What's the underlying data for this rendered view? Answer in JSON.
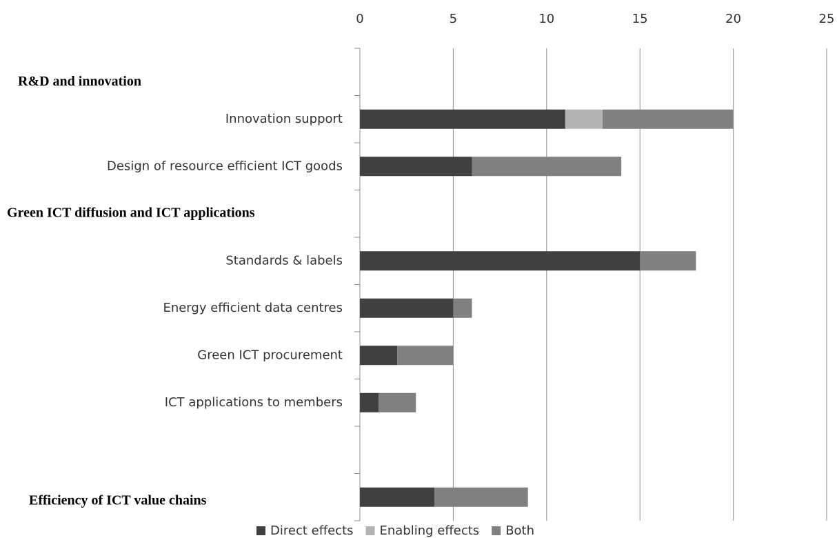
{
  "chart_data": {
    "type": "stacked_barh",
    "categories": [
      "R&D and innovation",
      "Innovation support",
      "Design of resource efficient ICT goods",
      "Green ICT diffusion and ICT applications",
      "Standards & labels",
      "Energy efficient data centres",
      "Green ICT procurement",
      "ICT applications to members",
      null,
      "Efficiency of ICT value chains"
    ],
    "bold": [
      true,
      false,
      false,
      true,
      false,
      false,
      false,
      false,
      false,
      true
    ],
    "series": [
      {
        "name": "Direct effects",
        "color": "#404040",
        "values": [
          null,
          11,
          6,
          null,
          15,
          5,
          2,
          1,
          null,
          4
        ]
      },
      {
        "name": "Enabling effects",
        "color": "#b3b3b3",
        "values": [
          null,
          2,
          0,
          null,
          0,
          0,
          0,
          0,
          null,
          0
        ]
      },
      {
        "name": "Both",
        "color": "#808080",
        "values": [
          null,
          7,
          8,
          null,
          3,
          1,
          3,
          2,
          null,
          5
        ]
      }
    ],
    "xlim": [
      0,
      25
    ],
    "xticks": [
      0,
      5,
      10,
      15,
      20,
      25
    ],
    "grid": true,
    "legend": "bottom"
  }
}
